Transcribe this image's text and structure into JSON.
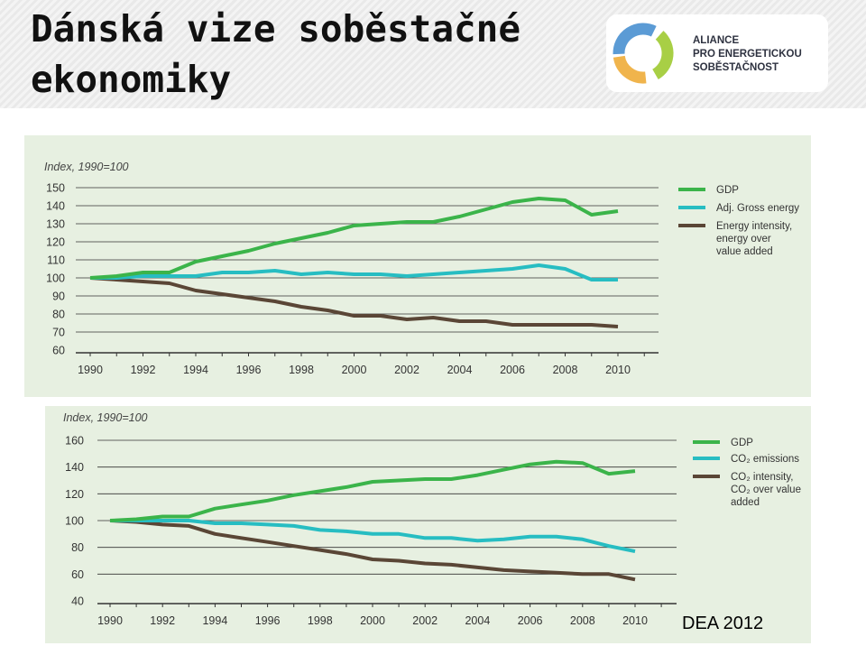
{
  "header": {
    "title_line1": "Dánská vize soběstačné",
    "title_line2": "ekonomiky"
  },
  "logo": {
    "icon": "alliance-ring-logo",
    "line1": "ALIANCE",
    "line2": "PRO ENERGETICKOU",
    "line3": "SOBĚSTAČNOST",
    "colors": {
      "blue": "#5b9bd5",
      "green": "#a8cf45",
      "yellow": "#f0b44c"
    }
  },
  "source": "DEA 2012",
  "colors": {
    "gdp": "#3bb44a",
    "energy": "#27bdc2",
    "intensity": "#5a4636"
  },
  "chart_data": [
    {
      "type": "line",
      "ylabel": "Index, 1990=100",
      "ylim": [
        60,
        150
      ],
      "yticks": [
        60,
        70,
        80,
        90,
        100,
        110,
        120,
        130,
        140,
        150
      ],
      "xticks": [
        1990,
        1992,
        1994,
        1996,
        1998,
        2000,
        2002,
        2004,
        2006,
        2008,
        2010
      ],
      "x": [
        1990,
        1991,
        1992,
        1993,
        1994,
        1995,
        1996,
        1997,
        1998,
        1999,
        2000,
        2001,
        2002,
        2003,
        2004,
        2005,
        2006,
        2007,
        2008,
        2009,
        2010
      ],
      "legend_position": "right",
      "grid": true,
      "series": [
        {
          "name": "GDP",
          "color": "#3bb44a",
          "values": [
            100,
            101,
            103,
            103,
            109,
            112,
            115,
            119,
            122,
            125,
            129,
            130,
            131,
            131,
            134,
            138,
            142,
            144,
            143,
            135,
            137
          ]
        },
        {
          "name": "Adj. Gross energy",
          "color": "#27bdc2",
          "values": [
            100,
            100,
            101,
            101,
            101,
            103,
            103,
            104,
            102,
            103,
            102,
            102,
            101,
            102,
            103,
            104,
            105,
            107,
            105,
            99,
            99
          ]
        },
        {
          "name": "Energy intensity, energy over value added",
          "legend_lines": [
            "Energy intensity,",
            "energy over",
            "value added"
          ],
          "color": "#5a4636",
          "values": [
            100,
            99,
            98,
            97,
            93,
            91,
            89,
            87,
            84,
            82,
            79,
            79,
            77,
            78,
            76,
            76,
            74,
            74,
            74,
            74,
            73
          ]
        }
      ]
    },
    {
      "type": "line",
      "ylabel": "Index, 1990=100",
      "ylim": [
        40,
        160
      ],
      "yticks": [
        40,
        60,
        80,
        100,
        120,
        140,
        160
      ],
      "xticks": [
        1990,
        1992,
        1994,
        1996,
        1998,
        2000,
        2002,
        2004,
        2006,
        2008,
        2010
      ],
      "x": [
        1990,
        1991,
        1992,
        1993,
        1994,
        1995,
        1996,
        1997,
        1998,
        1999,
        2000,
        2001,
        2002,
        2003,
        2004,
        2005,
        2006,
        2007,
        2008,
        2009,
        2010
      ],
      "legend_position": "right",
      "grid": true,
      "series": [
        {
          "name": "GDP",
          "color": "#3bb44a",
          "values": [
            100,
            101,
            103,
            103,
            109,
            112,
            115,
            119,
            122,
            125,
            129,
            130,
            131,
            131,
            134,
            138,
            142,
            144,
            143,
            135,
            137
          ]
        },
        {
          "name": "CO₂ emissions",
          "color": "#27bdc2",
          "values": [
            100,
            100,
            100,
            100,
            98,
            98,
            97,
            96,
            93,
            92,
            90,
            90,
            87,
            87,
            85,
            86,
            88,
            88,
            86,
            81,
            77
          ]
        },
        {
          "name": "CO₂ intensity, CO₂ over value added",
          "legend_lines": [
            "CO₂ intensity,",
            "CO₂ over value",
            "added"
          ],
          "color": "#5a4636",
          "values": [
            100,
            99,
            97,
            96,
            90,
            87,
            84,
            81,
            78,
            75,
            71,
            70,
            68,
            67,
            65,
            63,
            62,
            61,
            60,
            60,
            56
          ]
        }
      ]
    }
  ]
}
